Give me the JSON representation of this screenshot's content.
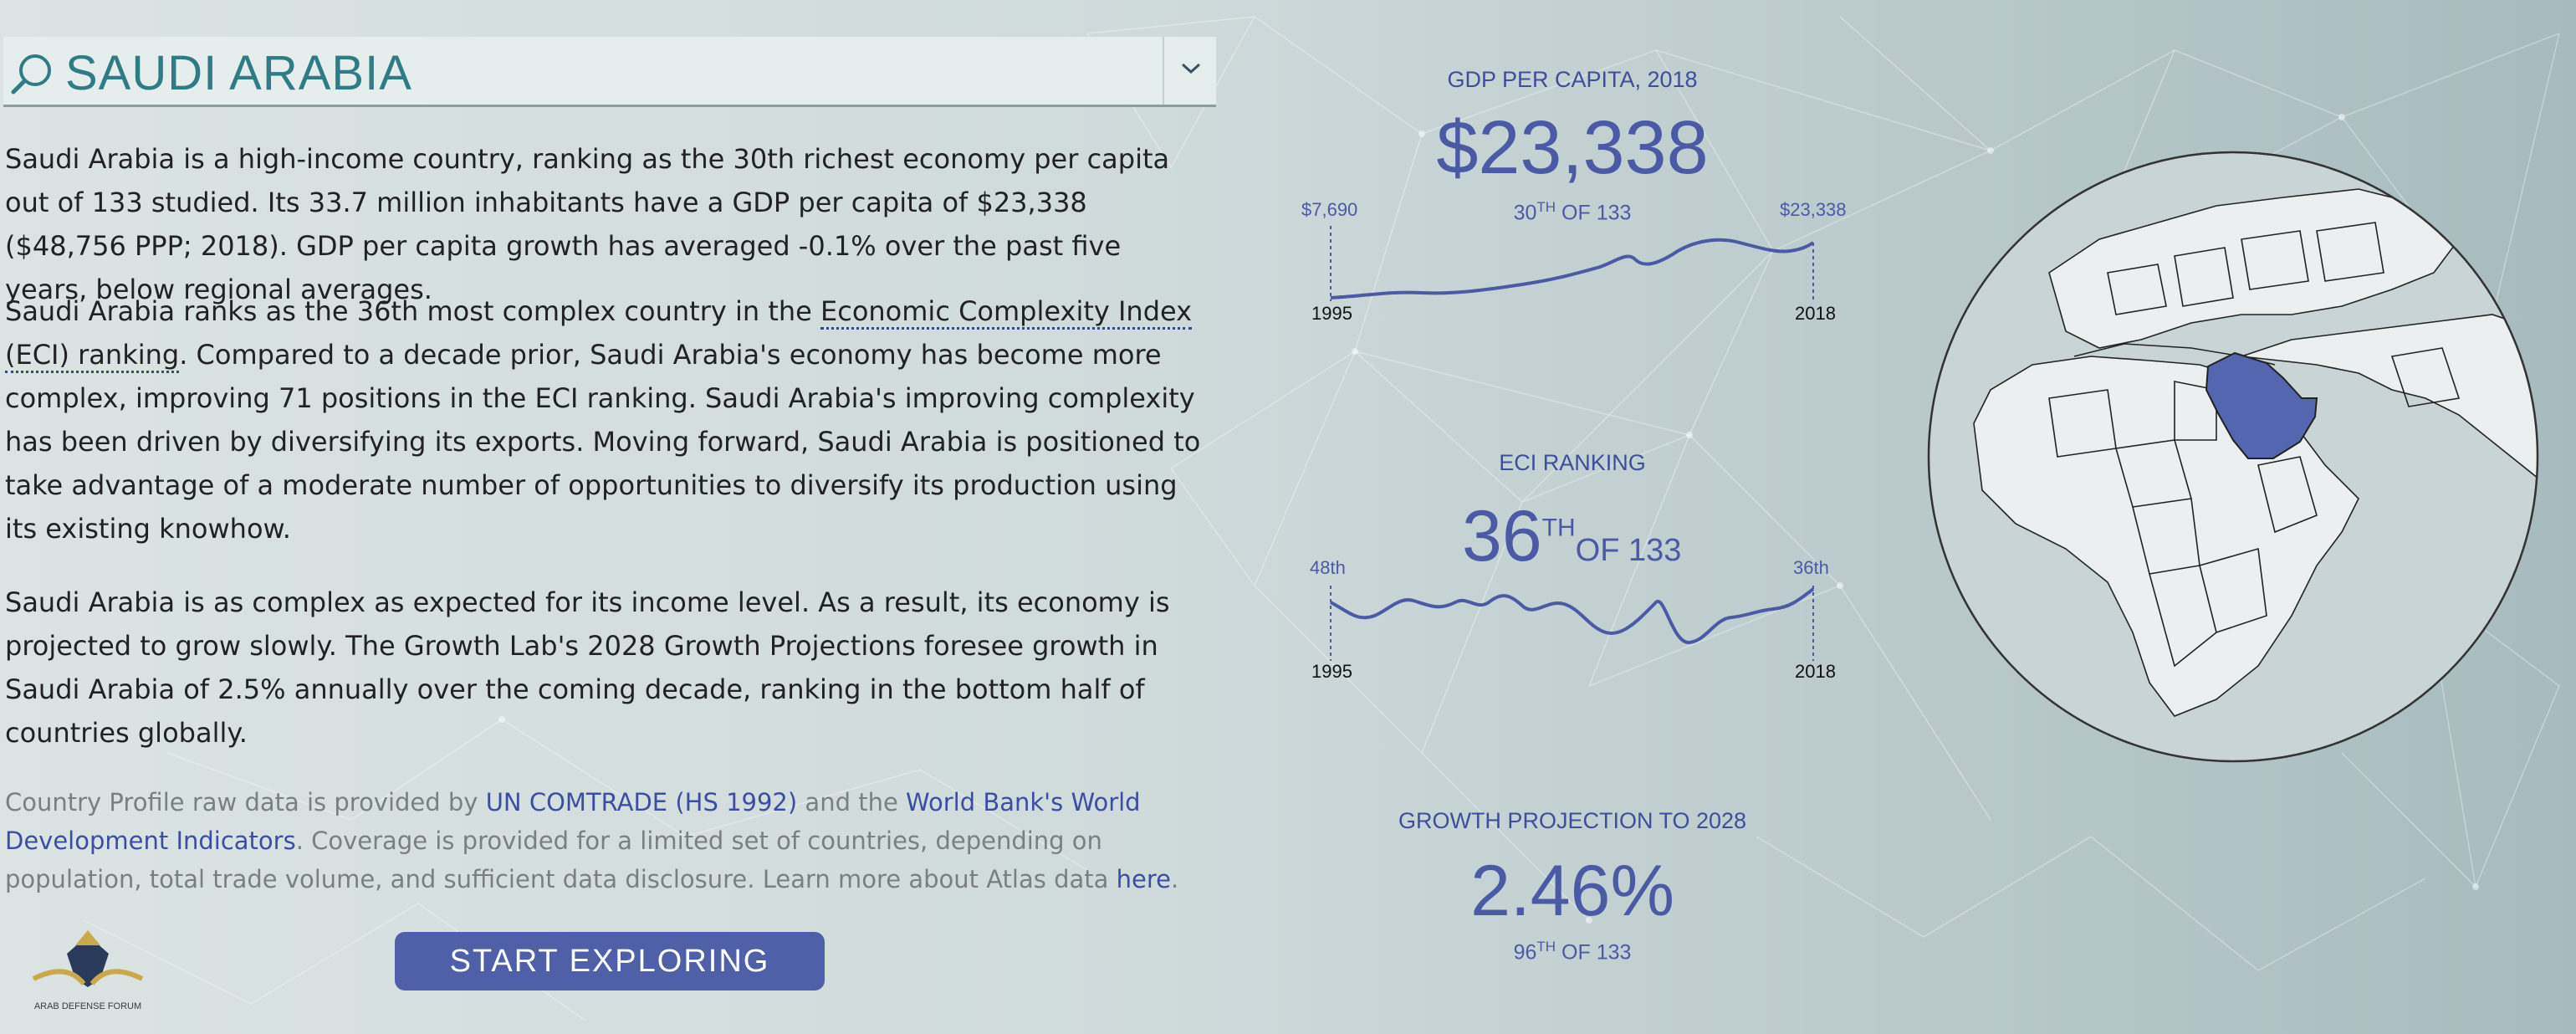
{
  "header": {
    "country": "SAUDI ARABIA",
    "search_icon": "search-icon",
    "dropdown_icon": "chevron-down-icon"
  },
  "intro": {
    "p1": "Saudi Arabia is a high-income country, ranking as the 30th richest economy per capita out of 133 studied. Its 33.7 million inhabitants have a GDP per capita of $23,338 ($48,756 PPP; 2018). GDP per capita growth has averaged -0.1% over the past five years, below regional averages.",
    "p2_before": "Saudi Arabia ranks as the 36th most complex country in the ",
    "p2_link": "Economic Complexity Index (ECI) ranking",
    "p2_after": ". Compared to a decade prior, Saudi Arabia's economy has become more complex, improving 71 positions in the ECI ranking. Saudi Arabia's improving complexity has been driven by diversifying its exports. Moving forward, Saudi Arabia is positioned to take advantage of a moderate number of opportunities to diversify its production using its existing knowhow.",
    "p3": "Saudi Arabia is as complex as expected for its income level. As a result, its economy is projected to grow slowly. The Growth Lab's 2028 Growth Projections foresee growth in Saudi Arabia of 2.5% annually over the coming decade, ranking in the bottom half of countries globally."
  },
  "note": {
    "t1": "Country Profile raw data is provided by ",
    "link1": "UN COMTRADE (HS 1992)",
    "t2": " and the ",
    "link2": "World Bank's World Development Indicators",
    "t3": ". Coverage is provided for a limited set of countries, depending on population, total trade volume, and sufficient data disclosure. Learn more about Atlas data ",
    "link3": "here",
    "t4": "."
  },
  "cta_label": "START EXPLORING",
  "logo_label": "ARAB DEFENSE FORUM",
  "gdp": {
    "title": "GDP PER CAPITA, 2018",
    "value": "$23,338",
    "rank_num": "30",
    "rank_suffix": "TH",
    "rank_of": "OF 133",
    "start_value": "$7,690",
    "end_value": "$23,338",
    "start_year": "1995",
    "end_year": "2018"
  },
  "eci": {
    "title": "ECI RANKING",
    "value": "36",
    "value_suffix": "TH",
    "value_of": "OF 133",
    "start_value": "48th",
    "end_value": "36th",
    "start_year": "1995",
    "end_year": "2018"
  },
  "growth": {
    "title": "GROWTH PROJECTION TO 2028",
    "value": "2.46%",
    "rank_num": "96",
    "rank_suffix": "TH",
    "rank_of": "OF 133"
  },
  "colors": {
    "accent": "#4a5aa5",
    "heading": "#2f7c86",
    "highlight_country": "#5566b0"
  }
}
